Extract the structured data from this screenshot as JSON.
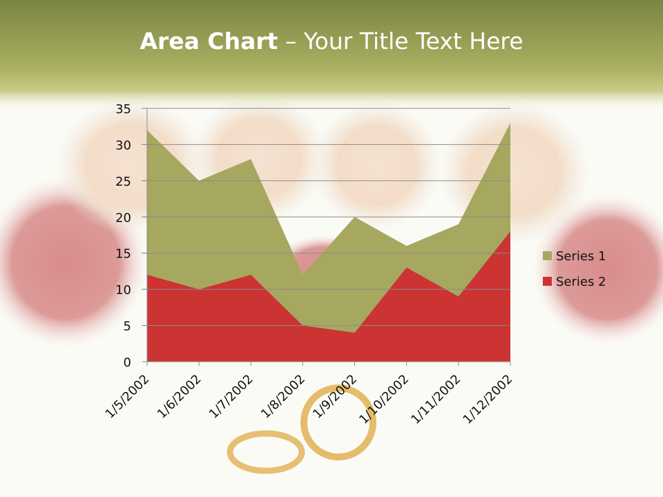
{
  "slide": {
    "title_bold": "Area Chart",
    "title_rest": " – Your Title Text Here"
  },
  "colors": {
    "header_top": "#7c8646",
    "header_bottom": "#b2b468",
    "series1": "#a6a860",
    "series2": "#cc3333",
    "gridline": "#8a8a8a"
  },
  "chart_data": {
    "type": "area",
    "title": "",
    "xlabel": "",
    "ylabel": "",
    "categories": [
      "1/5/2002",
      "1/6/2002",
      "1/7/2002",
      "1/8/2002",
      "1/9/2002",
      "1/10/2002",
      "1/11/2002",
      "1/12/2002"
    ],
    "series": [
      {
        "name": "Series 1",
        "values": [
          32,
          25,
          28,
          12,
          20,
          16,
          19,
          33
        ]
      },
      {
        "name": "Series 2",
        "values": [
          12,
          10,
          12,
          5,
          4,
          13,
          9,
          18
        ]
      }
    ],
    "ylim": [
      0,
      35
    ],
    "yticks": [
      0,
      5,
      10,
      15,
      20,
      25,
      30,
      35
    ],
    "grid": true,
    "legend": "right"
  }
}
